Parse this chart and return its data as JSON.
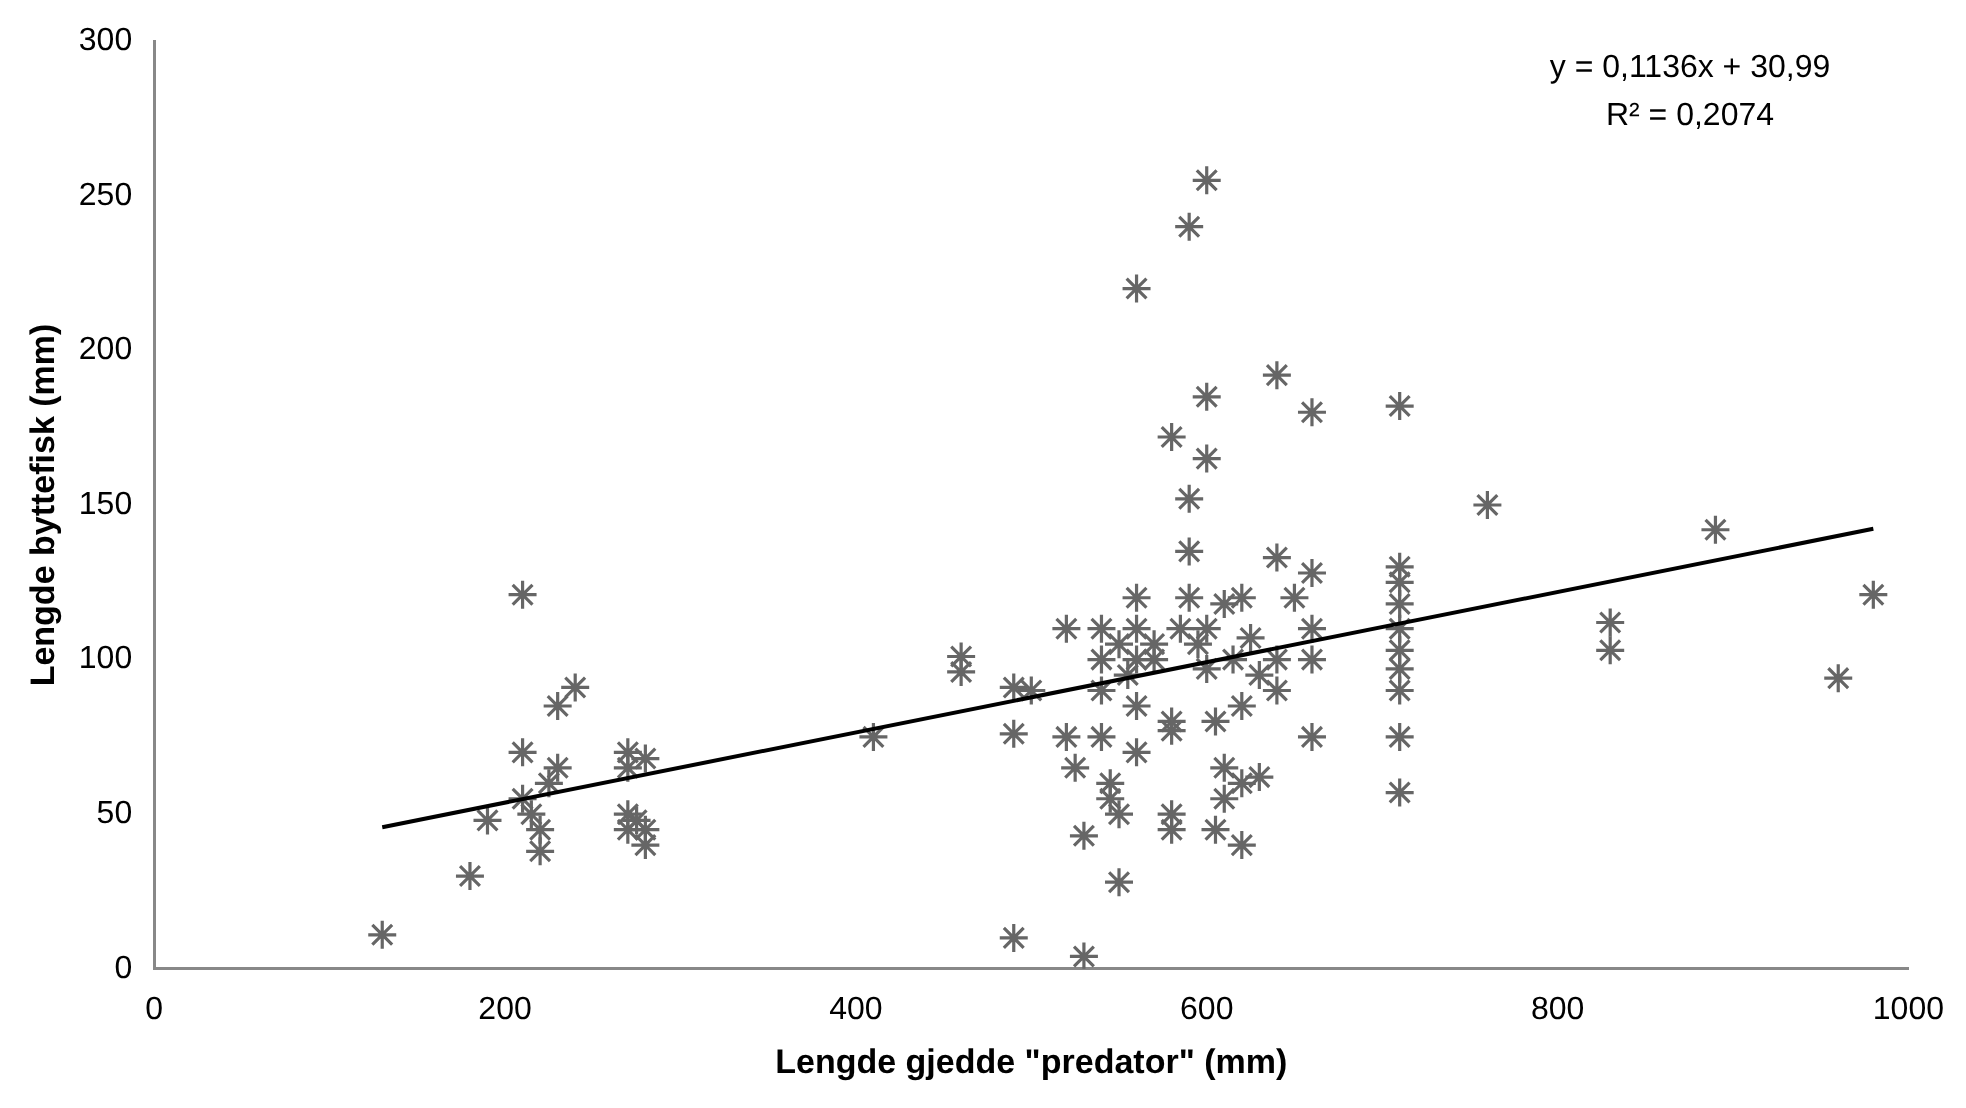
{
  "chart_data": {
    "type": "scatter",
    "xlabel": "Lengde gjedde \"predator\" (mm)",
    "ylabel": "Lengde byttefisk (mm)",
    "annotations": [
      "y = 0,1136x + 30,99",
      "R² = 0,2074"
    ],
    "xlim": [
      0,
      1000
    ],
    "xticks": [
      0,
      200,
      400,
      600,
      800,
      {
        "value": 1000,
        "label": "1000"
      }
    ],
    "ylim": [
      0,
      300
    ],
    "yticks": [
      0,
      50,
      100,
      150,
      200,
      250,
      300
    ],
    "grid": false,
    "legend": false,
    "marker": "cross",
    "series": [
      {
        "color": "#666666",
        "x": [
          130,
          180,
          190,
          210,
          210,
          210,
          215,
          220,
          220,
          225,
          230,
          230,
          240,
          270,
          270,
          270,
          270,
          275,
          280,
          280,
          280,
          410,
          460,
          460,
          490,
          490,
          490,
          500,
          520,
          520,
          525,
          530,
          530,
          540,
          540,
          540,
          540,
          545,
          545,
          550,
          550,
          550,
          555,
          560,
          560,
          560,
          560,
          560,
          560,
          570,
          570,
          580,
          580,
          580,
          580,
          580,
          585,
          590,
          590,
          590,
          590,
          595,
          600,
          600,
          600,
          600,
          600,
          605,
          605,
          610,
          610,
          610,
          615,
          620,
          620,
          620,
          620,
          625,
          630,
          630,
          640,
          640,
          640,
          640,
          650,
          660,
          660,
          660,
          660,
          660,
          710,
          710,
          710,
          710,
          710,
          710,
          710,
          710,
          710,
          710,
          760,
          830,
          830,
          890,
          960,
          980
        ],
        "values": [
          11,
          30,
          48,
          121,
          70,
          55,
          50,
          45,
          38,
          60,
          85,
          65,
          91,
          70,
          65,
          50,
          45,
          48,
          68,
          45,
          40,
          75,
          101,
          96,
          91,
          76,
          10,
          90,
          110,
          75,
          65,
          43,
          4,
          110,
          100,
          90,
          75,
          60,
          55,
          28,
          50,
          105,
          95,
          220,
          120,
          110,
          100,
          85,
          70,
          100,
          105,
          172,
          80,
          77,
          50,
          45,
          110,
          152,
          135,
          120,
          240,
          105,
          255,
          185,
          165,
          110,
          97,
          80,
          45,
          118,
          65,
          55,
          100,
          120,
          85,
          60,
          40,
          107,
          95,
          62,
          192,
          133,
          100,
          90,
          120,
          180,
          128,
          110,
          100,
          75,
          182,
          130,
          125,
          118,
          110,
          103,
          97,
          90,
          75,
          57,
          150,
          112,
          103,
          142,
          94,
          121
        ]
      },
      {
        "type": "line",
        "color": "#000000",
        "marker": "none",
        "x": [
          130,
          980
        ],
        "values": [
          45.8,
          142.3
        ]
      }
    ]
  }
}
